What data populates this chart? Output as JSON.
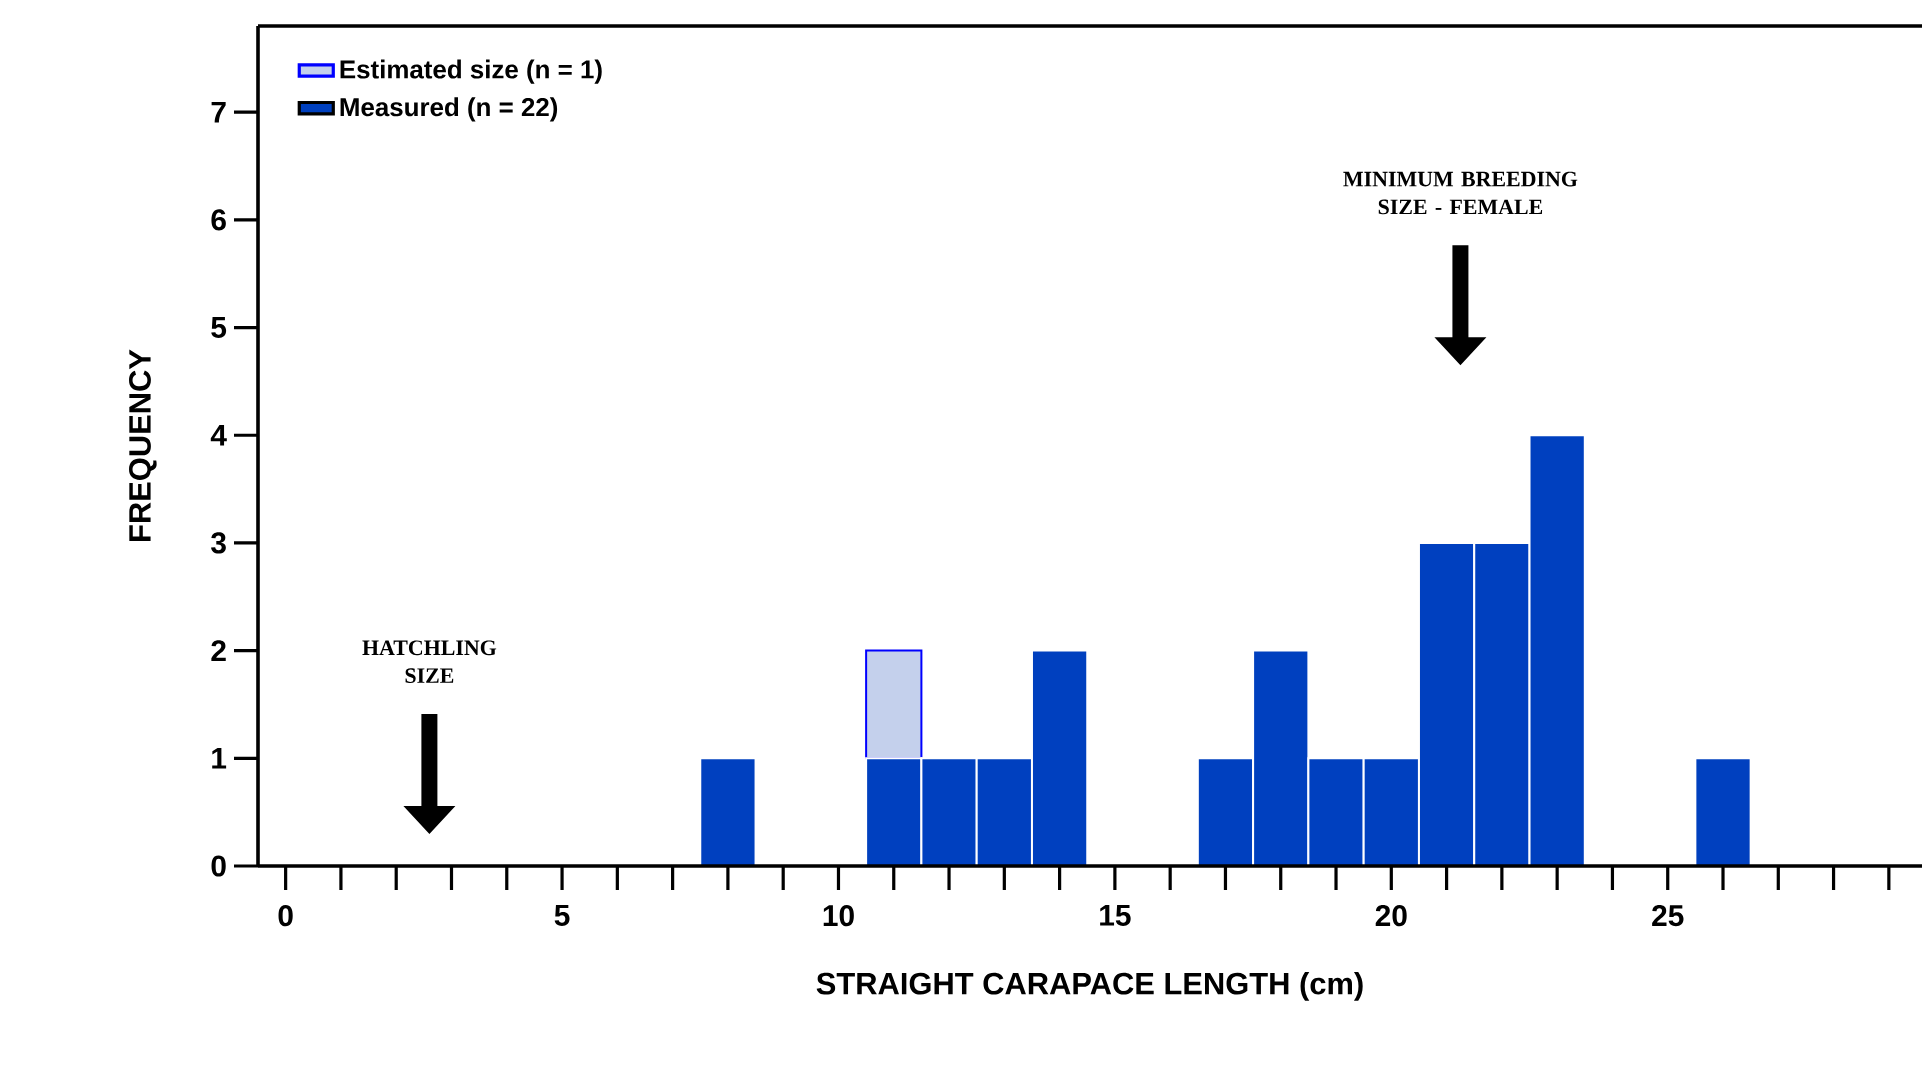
{
  "chart_data": {
    "type": "bar",
    "stacked": true,
    "xlabel": "STRAIGHT CARAPACE LENGTH (cm)",
    "ylabel": "FREQUENCY",
    "x": [
      8,
      11,
      12,
      13,
      14,
      17,
      18,
      19,
      20,
      21,
      22,
      23,
      26
    ],
    "series": [
      {
        "name": "Measured (n = 22)",
        "color": "#0040bf",
        "values": [
          1,
          1,
          1,
          1,
          2,
          1,
          2,
          1,
          1,
          3,
          3,
          4,
          1
        ]
      },
      {
        "name": "Estimated size (n = 1)",
        "color": "#c4d0ec",
        "values": [
          null,
          1,
          null,
          null,
          null,
          null,
          null,
          null,
          null,
          null,
          null,
          null,
          null
        ]
      }
    ],
    "xlim": [
      -0.5,
      29.6
    ],
    "ylim": [
      0,
      7.8
    ],
    "xticks": [
      0,
      {
        "value": 1,
        "label": null
      },
      {
        "value": 2,
        "label": null
      },
      {
        "value": 3,
        "label": null
      },
      {
        "value": 4,
        "label": null
      },
      5,
      {
        "value": 6,
        "label": null
      },
      {
        "value": 7,
        "label": null
      },
      {
        "value": 8,
        "label": null
      },
      {
        "value": 9,
        "label": null
      },
      10,
      {
        "value": 11,
        "label": null
      },
      {
        "value": 12,
        "label": null
      },
      {
        "value": 13,
        "label": null
      },
      {
        "value": 14,
        "label": null
      },
      15,
      {
        "value": 16,
        "label": null
      },
      {
        "value": 17,
        "label": null
      },
      {
        "value": 18,
        "label": null
      },
      {
        "value": 19,
        "label": null
      },
      20,
      {
        "value": 21,
        "label": null
      },
      {
        "value": 22,
        "label": null
      },
      {
        "value": 23,
        "label": null
      },
      {
        "value": 24,
        "label": null
      },
      25,
      {
        "value": 26,
        "label": null
      },
      {
        "value": 27,
        "label": null
      },
      {
        "value": 28,
        "label": null
      },
      {
        "value": 29,
        "label": null
      }
    ],
    "yticks": [
      0,
      1,
      2,
      3,
      4,
      5,
      6,
      7
    ],
    "legend": "top left",
    "annotations": [
      "HATCHLING SIZE",
      "MINIMUM BREEDING SIZE - FEMALE"
    ]
  }
}
